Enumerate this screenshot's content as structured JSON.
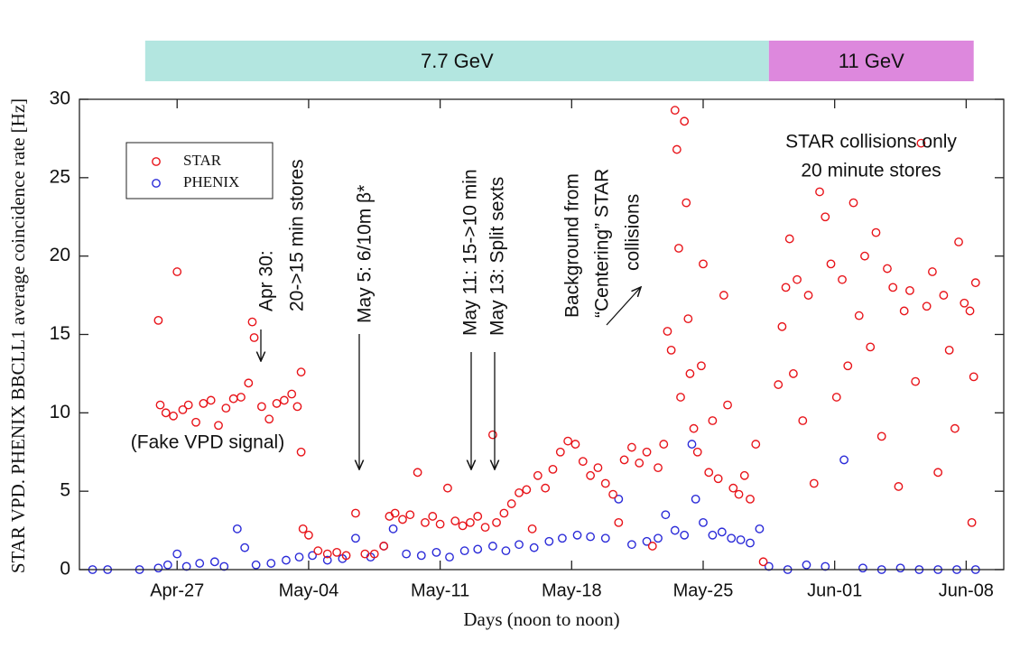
{
  "chart_data": {
    "type": "scatter",
    "x_label": "Days (noon to noon)",
    "y_label": "STAR VPD. PHENIX BBCLL1 average coincidence rate [Hz]",
    "xlim": [
      111.8,
      161.0
    ],
    "ylim": [
      0,
      30
    ],
    "xticks": [
      {
        "value": 117,
        "label": "Apr-27"
      },
      {
        "value": 124,
        "label": "May-04"
      },
      {
        "value": 131,
        "label": "May-11"
      },
      {
        "value": 138,
        "label": "May-18"
      },
      {
        "value": 145,
        "label": "May-25"
      },
      {
        "value": 152,
        "label": "Jun-01"
      },
      {
        "value": 159,
        "label": "Jun-08"
      }
    ],
    "yticks": [
      0,
      5,
      10,
      15,
      20,
      25,
      30
    ],
    "legend": "upper left",
    "bands": [
      {
        "label": "7.7 GeV",
        "start": 115.3,
        "end": 148.5,
        "color": "#b3e6e0"
      },
      {
        "label": "11 GeV",
        "start": 148.5,
        "end": 159.4,
        "color": "#dd88dd"
      }
    ],
    "annotations": [
      {
        "lines": [
          "Apr 30:",
          "20->15 min stores"
        ]
      },
      {
        "lines": [
          "May 5: 6/10m β*"
        ]
      },
      {
        "lines": [
          "May 11: 15->10 min"
        ]
      },
      {
        "lines": [
          "May 13: Split sexts"
        ]
      },
      {
        "lines": [
          "Background from",
          "“Centering” STAR",
          "collisions"
        ]
      },
      {
        "lines": [
          "STAR collisions only",
          "20 minute stores"
        ]
      },
      {
        "lines": [
          "(Fake VPD signal)"
        ]
      }
    ],
    "series": [
      {
        "name": "STAR",
        "color": "#e8141a",
        "x": [
          116.0,
          116.1,
          116.4,
          116.8,
          117.0,
          117.3,
          117.6,
          118.0,
          118.4,
          118.8,
          119.2,
          119.6,
          120.0,
          120.4,
          120.8,
          121.0,
          121.1,
          121.5,
          121.9,
          122.3,
          122.7,
          123.1,
          123.4,
          123.6,
          123.6,
          123.7,
          124.0,
          124.5,
          125.0,
          125.5,
          126.0,
          126.5,
          127.0,
          127.5,
          128.0,
          128.3,
          128.6,
          129.0,
          129.4,
          129.8,
          130.2,
          130.6,
          131.0,
          131.4,
          131.8,
          132.2,
          132.6,
          133.0,
          133.4,
          133.8,
          134.0,
          134.4,
          134.8,
          135.2,
          135.6,
          135.9,
          136.2,
          136.6,
          137.0,
          137.4,
          137.8,
          138.2,
          138.6,
          139.0,
          139.4,
          139.8,
          140.2,
          140.5,
          140.8,
          141.2,
          141.6,
          142.0,
          142.3,
          142.6,
          142.9,
          143.1,
          143.3,
          143.5,
          143.6,
          143.7,
          143.8,
          144.0,
          144.1,
          144.2,
          144.3,
          144.5,
          144.7,
          144.9,
          145.0,
          145.3,
          145.5,
          145.8,
          146.1,
          146.3,
          146.6,
          146.9,
          147.2,
          147.5,
          147.8,
          148.2,
          149.0,
          149.2,
          149.4,
          149.6,
          149.8,
          150.0,
          150.3,
          150.6,
          150.9,
          151.2,
          151.5,
          151.8,
          152.1,
          152.4,
          152.7,
          153.0,
          153.3,
          153.6,
          153.9,
          154.2,
          154.5,
          154.8,
          155.1,
          155.4,
          155.7,
          156.0,
          156.3,
          156.6,
          156.9,
          157.2,
          157.5,
          157.8,
          158.1,
          158.4,
          158.6,
          158.9,
          159.2,
          159.3,
          159.4,
          159.5
        ],
        "values": [
          15.9,
          10.5,
          10.0,
          9.8,
          19.0,
          10.2,
          10.5,
          9.4,
          10.6,
          10.8,
          9.2,
          10.3,
          10.9,
          11.0,
          11.9,
          15.8,
          14.8,
          10.4,
          9.6,
          10.6,
          10.8,
          11.2,
          10.4,
          12.6,
          7.5,
          2.6,
          2.2,
          1.2,
          1.0,
          1.1,
          0.9,
          3.6,
          1.0,
          1.0,
          1.5,
          3.4,
          3.6,
          3.2,
          3.5,
          6.2,
          3.0,
          3.4,
          2.9,
          5.2,
          3.1,
          2.8,
          3.0,
          3.4,
          2.7,
          8.6,
          3.0,
          3.6,
          4.2,
          4.9,
          5.1,
          2.6,
          6.0,
          5.2,
          6.4,
          7.5,
          8.2,
          8.0,
          6.9,
          6.0,
          6.5,
          5.5,
          4.8,
          3.0,
          7.0,
          7.8,
          6.8,
          7.5,
          1.5,
          6.5,
          8.0,
          15.2,
          14.0,
          29.3,
          26.8,
          20.5,
          11.0,
          28.6,
          23.4,
          16.0,
          12.5,
          9.0,
          7.5,
          13.0,
          19.5,
          6.2,
          9.5,
          5.8,
          17.5,
          10.5,
          5.2,
          4.8,
          6.0,
          4.5,
          8.0,
          0.5,
          11.8,
          15.5,
          18.0,
          21.1,
          12.5,
          18.5,
          9.5,
          17.5,
          5.5,
          24.1,
          22.5,
          19.5,
          11.0,
          18.5,
          13.0,
          23.4,
          16.2,
          20.0,
          14.2,
          21.5,
          8.5,
          19.2,
          18.0,
          5.3,
          16.5,
          17.8,
          12.0,
          27.2,
          16.8,
          19.0,
          6.2,
          17.5,
          14.0,
          9.0,
          20.9,
          17.0,
          16.5,
          3.0,
          12.3,
          18.3
        ]
      },
      {
        "name": "PHENIX",
        "color": "#2a2ad8",
        "x": [
          112.5,
          113.3,
          115.0,
          116.0,
          116.5,
          117.0,
          117.5,
          118.2,
          119.0,
          119.5,
          120.2,
          120.6,
          121.2,
          122.0,
          122.8,
          123.5,
          124.2,
          125.0,
          125.8,
          126.5,
          127.3,
          128.0,
          128.5,
          129.2,
          130.0,
          130.8,
          131.5,
          132.3,
          133.0,
          133.8,
          134.5,
          135.2,
          136.0,
          136.8,
          137.5,
          138.3,
          139.0,
          139.8,
          140.5,
          141.2,
          142.0,
          142.6,
          143.0,
          143.5,
          144.0,
          144.4,
          144.6,
          145.0,
          145.5,
          146.0,
          146.5,
          147.0,
          147.5,
          148.0,
          148.5,
          149.5,
          150.5,
          151.5,
          152.5,
          153.5,
          154.5,
          155.5,
          156.5,
          157.5,
          158.5,
          159.5
        ],
        "values": [
          0,
          0,
          0,
          0.1,
          0.3,
          1.0,
          0.2,
          0.4,
          0.5,
          0.2,
          2.6,
          1.4,
          0.3,
          0.4,
          0.6,
          0.8,
          0.9,
          0.6,
          0.7,
          2.0,
          0.8,
          1.5,
          2.6,
          1.0,
          0.9,
          1.1,
          0.8,
          1.2,
          1.3,
          1.5,
          1.2,
          1.6,
          1.4,
          1.8,
          2.0,
          2.2,
          2.1,
          2.0,
          4.5,
          1.6,
          1.8,
          2.0,
          3.5,
          2.5,
          2.2,
          8.0,
          4.5,
          3.0,
          2.2,
          2.4,
          2.0,
          1.9,
          1.7,
          2.6,
          0.2,
          0,
          0.3,
          0.2,
          7.0,
          0.1,
          0,
          0.1,
          0,
          0,
          0,
          0
        ]
      }
    ]
  }
}
